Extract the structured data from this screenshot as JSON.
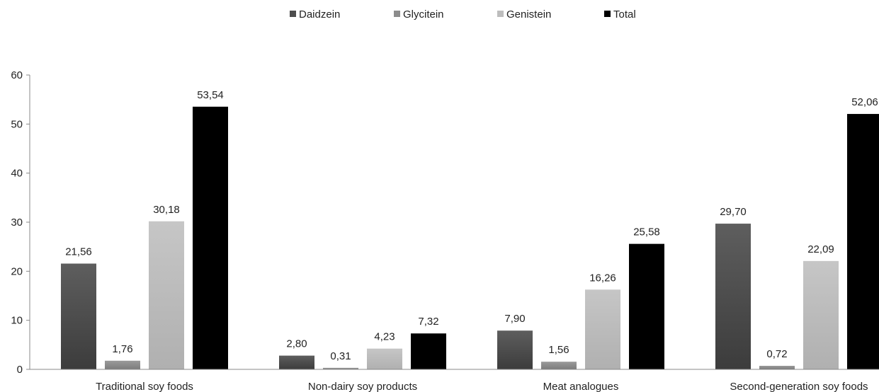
{
  "chart_data": {
    "type": "bar",
    "categories": [
      "Traditional soy foods",
      "Non-dairy soy products",
      "Meat analogues",
      "Second-generation soy foods"
    ],
    "series": [
      {
        "name": "Daidzein",
        "values": [
          21.56,
          2.8,
          7.9,
          29.7
        ],
        "labels": [
          "21,56",
          "2,80",
          "7,90",
          "29,70"
        ],
        "color": "#4d4d4d"
      },
      {
        "name": "Glycitein",
        "values": [
          1.76,
          0.31,
          1.56,
          0.72
        ],
        "labels": [
          "1,76",
          "0,31",
          "1,56",
          "0,72"
        ],
        "color": "#8c8c8c"
      },
      {
        "name": "Genistein",
        "values": [
          30.18,
          4.23,
          16.26,
          22.09
        ],
        "labels": [
          "30,18",
          "4,23",
          "16,26",
          "22,09"
        ],
        "color": "#bdbdbd"
      },
      {
        "name": "Total",
        "values": [
          53.54,
          7.32,
          25.58,
          52.06
        ],
        "labels": [
          "53,54",
          "7,32",
          "25,58",
          "52,06"
        ],
        "color": "#000000"
      }
    ],
    "yticks": [
      0,
      10,
      20,
      30,
      40,
      50,
      60
    ],
    "ylim": [
      0,
      60
    ],
    "grid": false,
    "legend_position": "top"
  }
}
